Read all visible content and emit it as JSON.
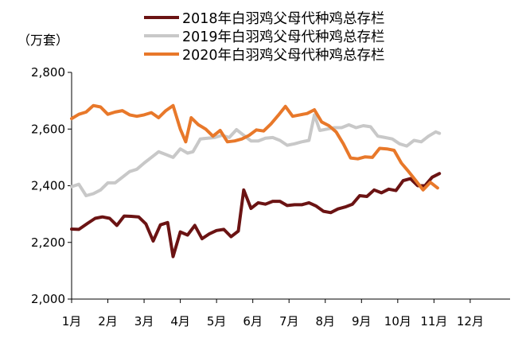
{
  "chart_data": {
    "type": "line",
    "title": "",
    "ylabel": "（万套）",
    "xlabel": "",
    "ylim": [
      2000,
      2800
    ],
    "yticks": [
      2000,
      2200,
      2400,
      2600,
      2800
    ],
    "ytick_labels": [
      "2,000",
      "2,200",
      "2,400",
      "2,600",
      "2,800"
    ],
    "xlim": [
      1,
      13.1
    ],
    "xticks": [
      1,
      2,
      3,
      4,
      5,
      6,
      7,
      8,
      9,
      10,
      11,
      12
    ],
    "xtick_labels": [
      "1月",
      "2月",
      "3月",
      "4月",
      "5月",
      "6月",
      "7月",
      "8月",
      "9月",
      "10月",
      "11月",
      "12月"
    ],
    "grid": false,
    "legend_position": "top",
    "series": [
      {
        "name": "2018年白羽鸡父母代种鸡总存栏",
        "color": "#6b1313",
        "points": [
          [
            1.0,
            2247
          ],
          [
            1.2,
            2246
          ],
          [
            1.45,
            2268
          ],
          [
            1.65,
            2285
          ],
          [
            1.85,
            2290
          ],
          [
            2.05,
            2285
          ],
          [
            2.25,
            2260
          ],
          [
            2.45,
            2293
          ],
          [
            2.65,
            2292
          ],
          [
            2.85,
            2290
          ],
          [
            3.05,
            2265
          ],
          [
            3.25,
            2205
          ],
          [
            3.45,
            2262
          ],
          [
            3.65,
            2270
          ],
          [
            3.8,
            2150
          ],
          [
            4.0,
            2237
          ],
          [
            4.2,
            2226
          ],
          [
            4.4,
            2260
          ],
          [
            4.6,
            2213
          ],
          [
            4.8,
            2230
          ],
          [
            5.0,
            2242
          ],
          [
            5.2,
            2246
          ],
          [
            5.4,
            2220
          ],
          [
            5.6,
            2240
          ],
          [
            5.75,
            2385
          ],
          [
            5.95,
            2320
          ],
          [
            6.15,
            2340
          ],
          [
            6.35,
            2335
          ],
          [
            6.55,
            2345
          ],
          [
            6.75,
            2345
          ],
          [
            6.95,
            2330
          ],
          [
            7.15,
            2333
          ],
          [
            7.35,
            2333
          ],
          [
            7.55,
            2340
          ],
          [
            7.75,
            2328
          ],
          [
            7.95,
            2310
          ],
          [
            8.15,
            2305
          ],
          [
            8.35,
            2318
          ],
          [
            8.55,
            2325
          ],
          [
            8.75,
            2335
          ],
          [
            8.95,
            2365
          ],
          [
            9.15,
            2362
          ],
          [
            9.35,
            2385
          ],
          [
            9.55,
            2375
          ],
          [
            9.75,
            2388
          ],
          [
            9.95,
            2383
          ],
          [
            10.15,
            2418
          ],
          [
            10.35,
            2425
          ],
          [
            10.55,
            2400
          ],
          [
            10.75,
            2400
          ],
          [
            10.95,
            2430
          ],
          [
            11.15,
            2443
          ]
        ]
      },
      {
        "name": "2019年白羽鸡父母代种鸡总存栏",
        "color": "#c8c8c8",
        "points": [
          [
            1.0,
            2397
          ],
          [
            1.2,
            2405
          ],
          [
            1.4,
            2365
          ],
          [
            1.6,
            2372
          ],
          [
            1.8,
            2385
          ],
          [
            2.0,
            2410
          ],
          [
            2.2,
            2410
          ],
          [
            2.4,
            2430
          ],
          [
            2.6,
            2450
          ],
          [
            2.8,
            2458
          ],
          [
            3.0,
            2480
          ],
          [
            3.2,
            2500
          ],
          [
            3.4,
            2520
          ],
          [
            3.6,
            2510
          ],
          [
            3.8,
            2500
          ],
          [
            4.0,
            2530
          ],
          [
            4.2,
            2515
          ],
          [
            4.35,
            2520
          ],
          [
            4.55,
            2565
          ],
          [
            4.75,
            2568
          ],
          [
            4.95,
            2570
          ],
          [
            5.15,
            2578
          ],
          [
            5.35,
            2570
          ],
          [
            5.55,
            2598
          ],
          [
            5.75,
            2578
          ],
          [
            5.95,
            2558
          ],
          [
            6.15,
            2558
          ],
          [
            6.35,
            2568
          ],
          [
            6.55,
            2570
          ],
          [
            6.75,
            2560
          ],
          [
            6.95,
            2543
          ],
          [
            7.15,
            2548
          ],
          [
            7.35,
            2555
          ],
          [
            7.55,
            2560
          ],
          [
            7.7,
            2650
          ],
          [
            7.85,
            2595
          ],
          [
            8.05,
            2600
          ],
          [
            8.25,
            2605
          ],
          [
            8.45,
            2605
          ],
          [
            8.65,
            2615
          ],
          [
            8.85,
            2605
          ],
          [
            9.05,
            2612
          ],
          [
            9.25,
            2608
          ],
          [
            9.45,
            2575
          ],
          [
            9.65,
            2570
          ],
          [
            9.85,
            2565
          ],
          [
            10.05,
            2548
          ],
          [
            10.25,
            2540
          ],
          [
            10.45,
            2560
          ],
          [
            10.65,
            2555
          ],
          [
            10.85,
            2575
          ],
          [
            11.05,
            2590
          ],
          [
            11.15,
            2585
          ]
        ]
      },
      {
        "name": "2020年白羽鸡父母代种鸡总存栏",
        "color": "#e8782a",
        "points": [
          [
            1.0,
            2637
          ],
          [
            1.2,
            2652
          ],
          [
            1.4,
            2660
          ],
          [
            1.6,
            2683
          ],
          [
            1.8,
            2678
          ],
          [
            2.0,
            2652
          ],
          [
            2.2,
            2660
          ],
          [
            2.4,
            2665
          ],
          [
            2.6,
            2650
          ],
          [
            2.8,
            2645
          ],
          [
            3.0,
            2650
          ],
          [
            3.2,
            2658
          ],
          [
            3.4,
            2640
          ],
          [
            3.6,
            2665
          ],
          [
            3.8,
            2683
          ],
          [
            4.0,
            2600
          ],
          [
            4.15,
            2555
          ],
          [
            4.3,
            2640
          ],
          [
            4.5,
            2615
          ],
          [
            4.7,
            2600
          ],
          [
            4.9,
            2575
          ],
          [
            5.1,
            2595
          ],
          [
            5.3,
            2555
          ],
          [
            5.5,
            2558
          ],
          [
            5.7,
            2565
          ],
          [
            5.9,
            2578
          ],
          [
            6.1,
            2597
          ],
          [
            6.3,
            2593
          ],
          [
            6.5,
            2618
          ],
          [
            6.7,
            2648
          ],
          [
            6.9,
            2680
          ],
          [
            7.1,
            2645
          ],
          [
            7.3,
            2650
          ],
          [
            7.5,
            2655
          ],
          [
            7.7,
            2668
          ],
          [
            7.9,
            2625
          ],
          [
            8.1,
            2612
          ],
          [
            8.3,
            2590
          ],
          [
            8.5,
            2548
          ],
          [
            8.7,
            2498
          ],
          [
            8.9,
            2495
          ],
          [
            9.1,
            2502
          ],
          [
            9.3,
            2500
          ],
          [
            9.5,
            2532
          ],
          [
            9.7,
            2530
          ],
          [
            9.9,
            2525
          ],
          [
            10.1,
            2480
          ],
          [
            10.3,
            2450
          ],
          [
            10.5,
            2418
          ],
          [
            10.7,
            2385
          ],
          [
            10.9,
            2412
          ],
          [
            11.1,
            2392
          ]
        ]
      }
    ]
  }
}
